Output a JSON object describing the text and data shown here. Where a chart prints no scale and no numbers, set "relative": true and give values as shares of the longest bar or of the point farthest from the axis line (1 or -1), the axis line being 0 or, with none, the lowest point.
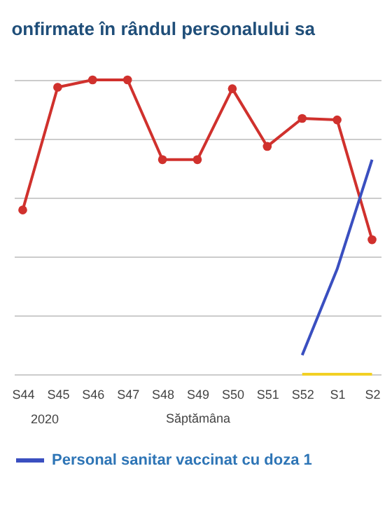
{
  "chart_data": {
    "type": "line",
    "title": "onfirmate în rândul personalului sa",
    "xlabel": "Săptămâna",
    "categories": [
      "S44",
      "S45",
      "S46",
      "S47",
      "S48",
      "S49",
      "S50",
      "S51",
      "S52",
      "S1",
      "S2"
    ],
    "series": [
      {
        "color": "#d0312d",
        "marker": "circle",
        "values": [
          0.558,
          0.975,
          1,
          1,
          0.729,
          0.729,
          0.97,
          0.774,
          0.869,
          0.864,
          0.457
        ]
      },
      {
        "name": "Personal sanitar vaccinat cu doza 1",
        "color": "#3a4fc0",
        "marker": "none",
        "values": [
          null,
          null,
          null,
          null,
          null,
          null,
          null,
          null,
          0.065,
          0.357,
          0.729
        ]
      },
      {
        "color": "#f2d024",
        "marker": "none",
        "values": [
          null,
          null,
          null,
          null,
          null,
          null,
          null,
          null,
          0,
          0,
          0
        ]
      }
    ],
    "relative": true,
    "grid": "y",
    "legend": "bottom",
    "annotations": [
      "2020"
    ]
  }
}
